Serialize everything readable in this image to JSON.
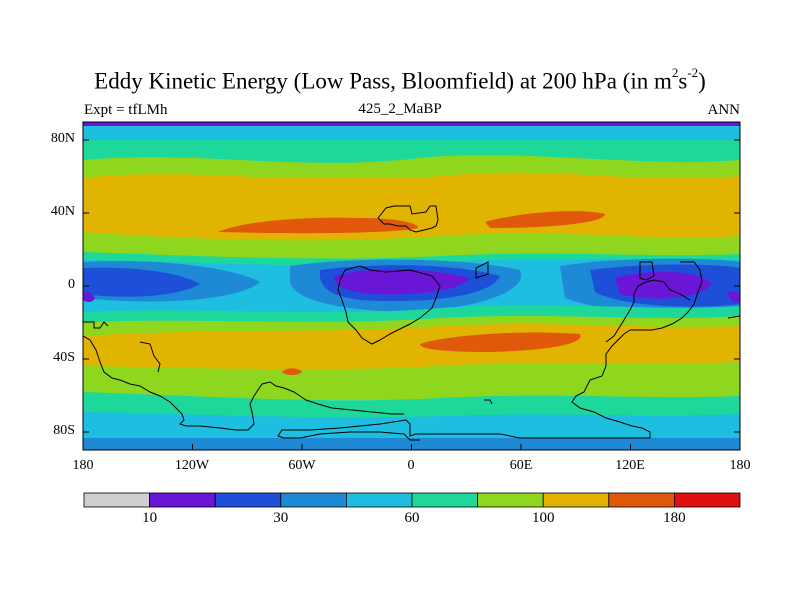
{
  "title": {
    "main_prefix": "Eddy Kinetic Energy (Low Pass, Bloomfield) at 200 hPa (in m",
    "main_sup1": "2",
    "main_s": "s",
    "main_sup2": "-2",
    "main_suffix": ")",
    "subtitle": "425_2_MaBP",
    "left_label": "Expt = tfLMh",
    "right_label": "ANN"
  },
  "axes": {
    "y_ticks": [
      "80N",
      "40N",
      "0",
      "40S",
      "80S"
    ],
    "x_ticks": [
      "180",
      "120W",
      "60W",
      "0",
      "60E",
      "120E",
      "180"
    ]
  },
  "colorbar": {
    "colors": [
      "#cfcfcf",
      "#6a16d6",
      "#1e4fd8",
      "#1e8ad6",
      "#1ebee0",
      "#1ed79a",
      "#8fd61e",
      "#e0b400",
      "#e0590a",
      "#e01010"
    ],
    "labels": [
      {
        "text": "10",
        "index": 1
      },
      {
        "text": "30",
        "index": 3
      },
      {
        "text": "60",
        "index": 5
      },
      {
        "text": "100",
        "index": 7
      },
      {
        "text": "180",
        "index": 9
      }
    ]
  }
}
